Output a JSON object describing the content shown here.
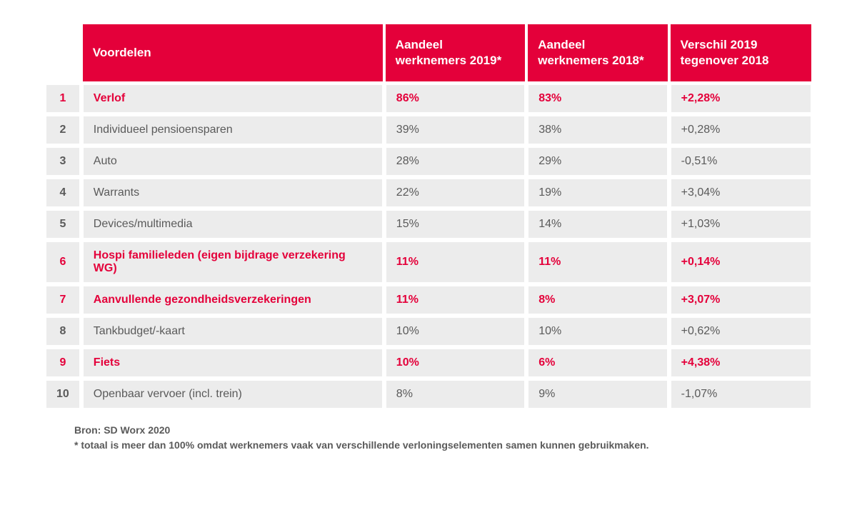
{
  "colors": {
    "accent": "#e4003a",
    "rowbg": "#ececec",
    "textnormal": "#5a5a5a",
    "white": "#ffffff"
  },
  "header": {
    "col1": "",
    "col2": "Voordelen",
    "col3": "Aandeel werknemers 2019*",
    "col4": "Aandeel werknemers 2018*",
    "col5": "Verschil 2019 tegenover 2018"
  },
  "rows": [
    {
      "rank": "1",
      "voordeel": "Verlof",
      "y2019": "86%",
      "y2018": "83%",
      "diff": "+2,28%",
      "hi": true
    },
    {
      "rank": "2",
      "voordeel": "Individueel pensioensparen",
      "y2019": "39%",
      "y2018": "38%",
      "diff": "+0,28%",
      "hi": false
    },
    {
      "rank": "3",
      "voordeel": "Auto",
      "y2019": "28%",
      "y2018": "29%",
      "diff": "-0,51%",
      "hi": false
    },
    {
      "rank": "4",
      "voordeel": "Warrants",
      "y2019": "22%",
      "y2018": "19%",
      "diff": "+3,04%",
      "hi": false
    },
    {
      "rank": "5",
      "voordeel": "Devices/multimedia",
      "y2019": "15%",
      "y2018": "14%",
      "diff": "+1,03%",
      "hi": false
    },
    {
      "rank": "6",
      "voordeel": "Hospi familieleden (eigen bijdrage verzekering WG)",
      "y2019": "11%",
      "y2018": "11%",
      "diff": "+0,14%",
      "hi": true
    },
    {
      "rank": "7",
      "voordeel": "Aanvullende gezondheidsverzekeringen",
      "y2019": "11%",
      "y2018": "8%",
      "diff": "+3,07%",
      "hi": true
    },
    {
      "rank": "8",
      "voordeel": "Tankbudget/-kaart",
      "y2019": "10%",
      "y2018": "10%",
      "diff": "+0,62%",
      "hi": false
    },
    {
      "rank": "9",
      "voordeel": "Fiets",
      "y2019": "10%",
      "y2018": "6%",
      "diff": "+4,38%",
      "hi": true
    },
    {
      "rank": "10",
      "voordeel": "Openbaar vervoer (incl. trein)",
      "y2019": "8%",
      "y2018": "9%",
      "diff": "-1,07%",
      "hi": false
    }
  ],
  "footnote": {
    "source": "Bron: SD Worx 2020",
    "note": "* totaal is meer dan 100% omdat werknemers vaak van verschillende verloningselementen samen kunnen gebruikmaken."
  }
}
